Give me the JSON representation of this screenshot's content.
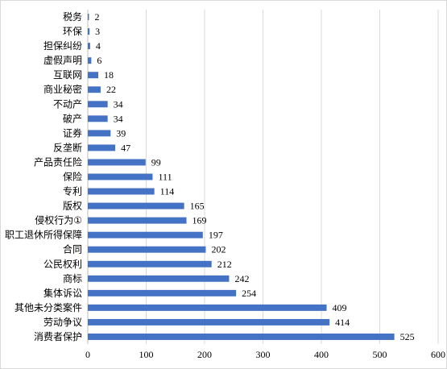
{
  "chart_data": {
    "type": "bar",
    "orientation": "horizontal",
    "categories": [
      "税务",
      "环保",
      "担保纠纷",
      "虚假声明",
      "互联网",
      "商业秘密",
      "不动产",
      "破产",
      "证券",
      "反垄断",
      "产品责任险",
      "保险",
      "专利",
      "版权",
      "侵权行为①",
      "职工退休所得保障",
      "合同",
      "公民权利",
      "商标",
      "集体诉讼",
      "其他未分类案件",
      "劳动争议",
      "消费者保护"
    ],
    "values": [
      2,
      3,
      4,
      6,
      18,
      22,
      34,
      34,
      39,
      47,
      99,
      111,
      114,
      165,
      169,
      197,
      202,
      212,
      242,
      254,
      409,
      414,
      525
    ],
    "x_ticks": [
      "0",
      "100",
      "200",
      "300",
      "400",
      "500",
      "600"
    ],
    "xlim": [
      0,
      600
    ],
    "bar_color": "#4472c4",
    "grid": true,
    "grid_color": "#d9d9d9",
    "title": "",
    "xlabel": "",
    "ylabel": ""
  }
}
